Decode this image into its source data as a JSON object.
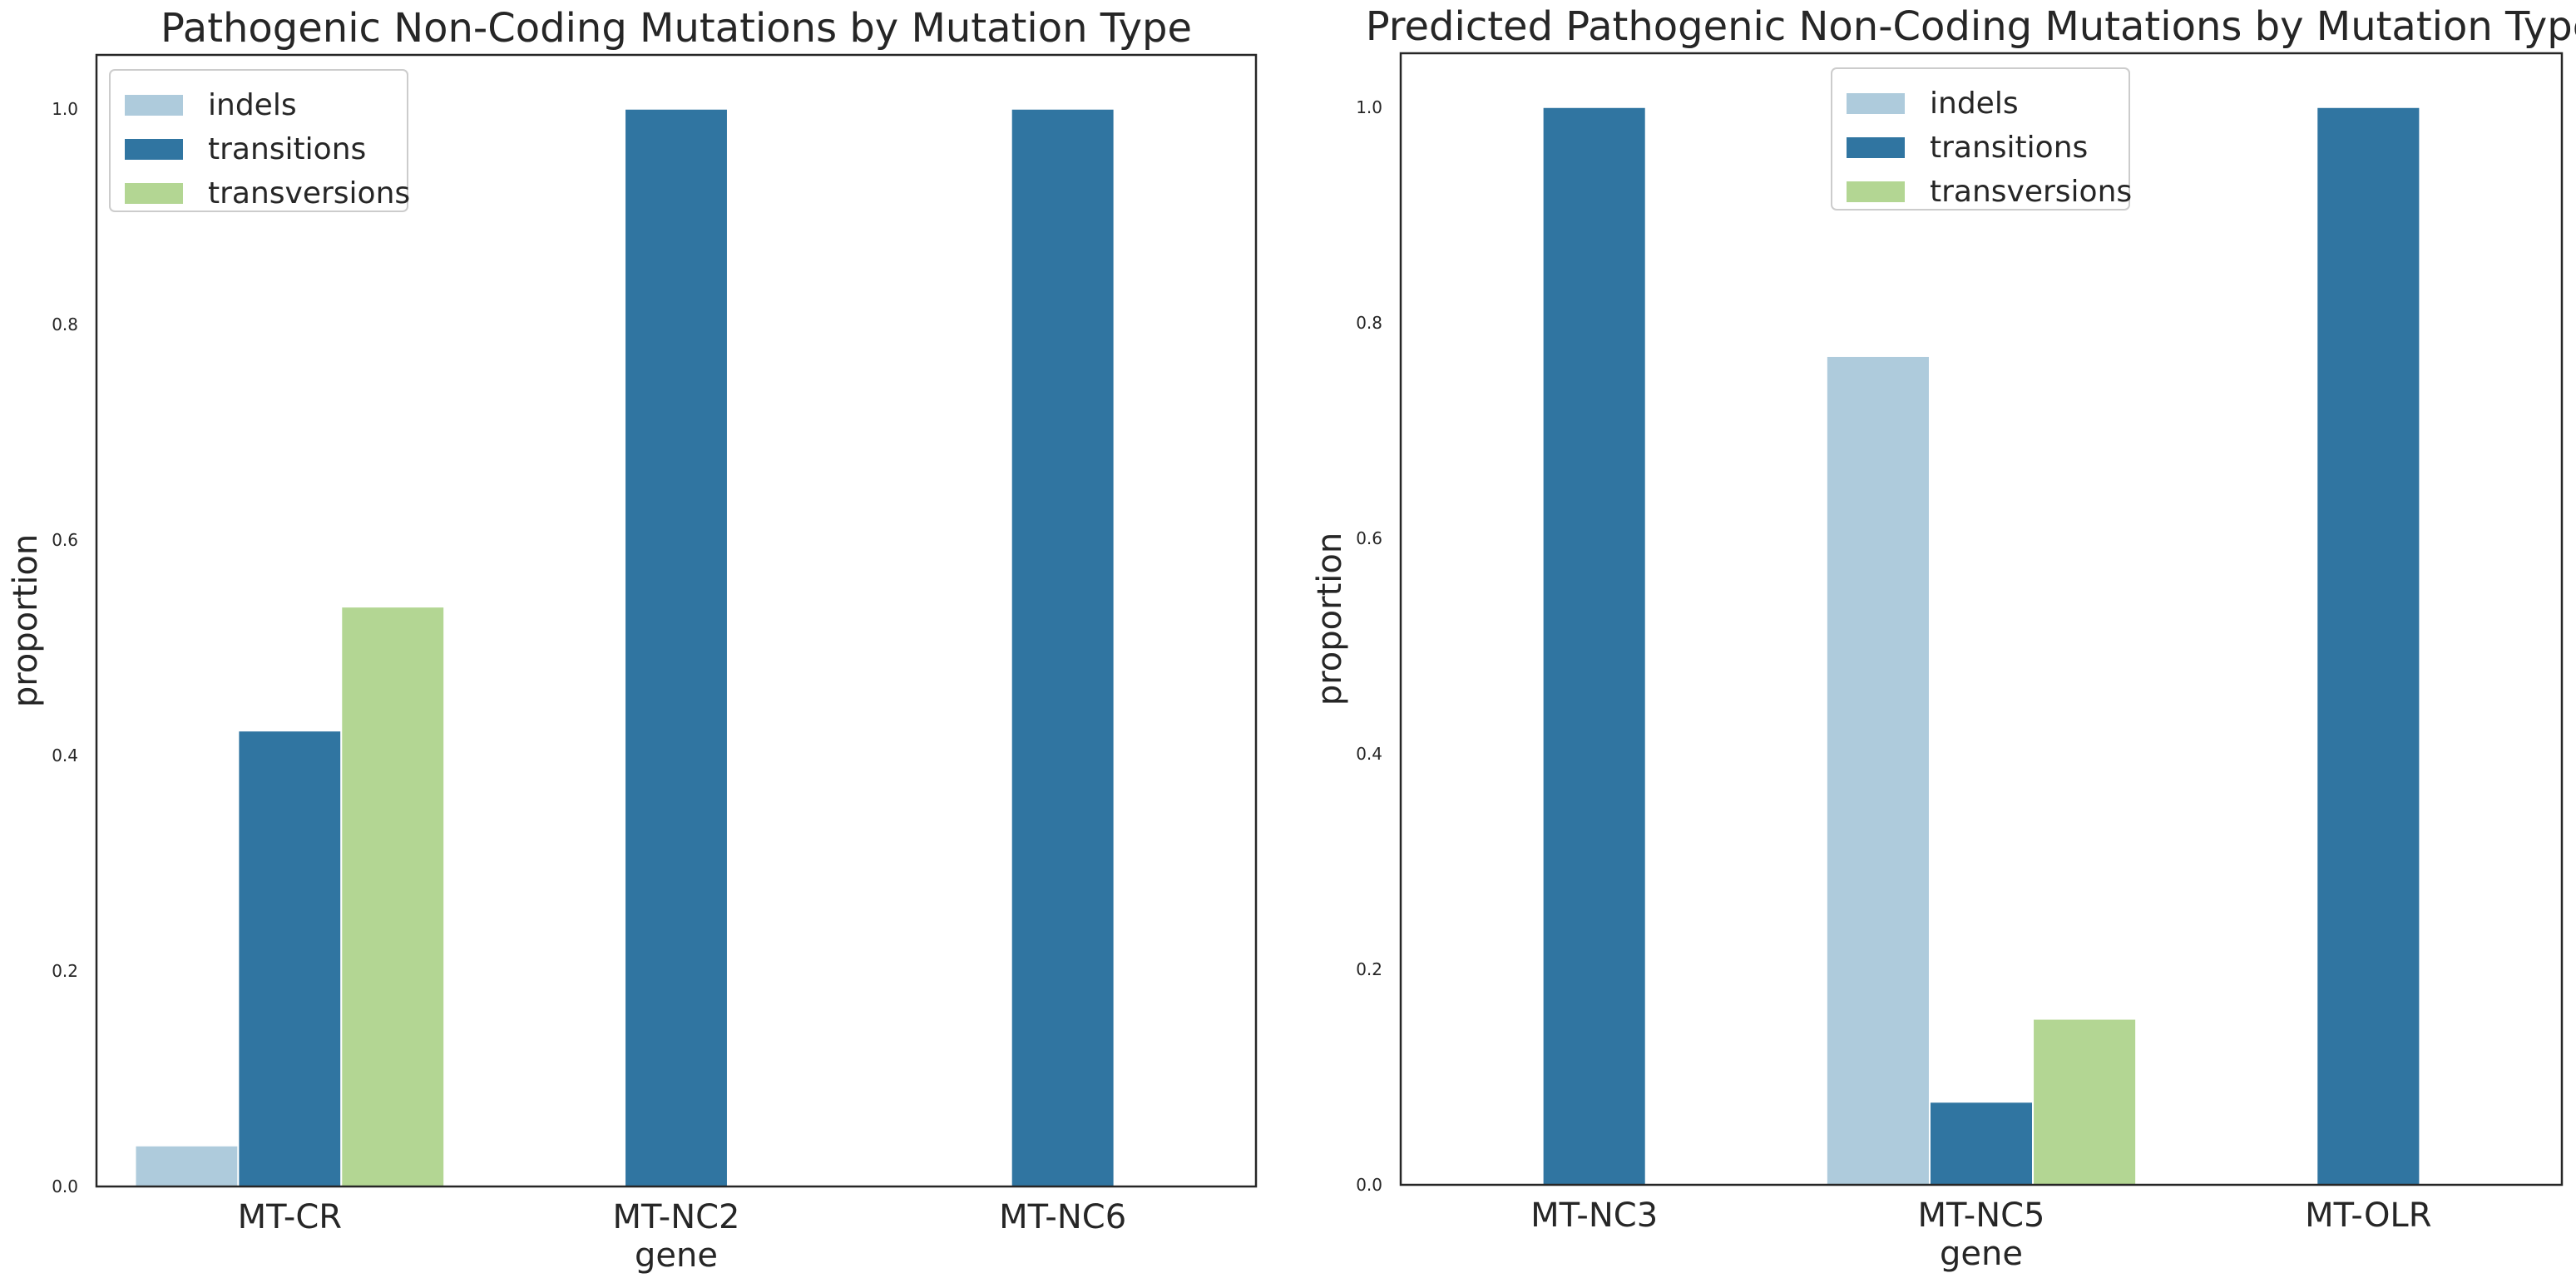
{
  "chart_data": [
    {
      "type": "bar",
      "title": "Pathogenic Non-Coding Mutations by Mutation Type",
      "xlabel": "gene",
      "ylabel": "proportion",
      "categories": [
        "MT-CR",
        "MT-NC2",
        "MT-NC6"
      ],
      "series": [
        {
          "name": "indels",
          "values": [
            0.038,
            0,
            0
          ]
        },
        {
          "name": "transitions",
          "values": [
            0.423,
            1.0,
            1.0
          ]
        },
        {
          "name": "transversions",
          "values": [
            0.538,
            0,
            0
          ]
        }
      ],
      "ylim": [
        0,
        1.05
      ],
      "yticks": [
        0.0,
        0.2,
        0.4,
        0.6,
        0.8,
        1.0
      ],
      "ytick_labels": [
        "0.0",
        "0.2",
        "0.4",
        "0.6",
        "0.8",
        "1.0"
      ],
      "legend": "top-left",
      "grid": false
    },
    {
      "type": "bar",
      "title": "Predicted Pathogenic Non-Coding Mutations by Mutation Type",
      "xlabel": "gene",
      "ylabel": "proportion",
      "categories": [
        "MT-NC3",
        "MT-NC5",
        "MT-OLR"
      ],
      "series": [
        {
          "name": "indels",
          "values": [
            0,
            0.769,
            0
          ]
        },
        {
          "name": "transitions",
          "values": [
            1.0,
            0.077,
            1.0
          ]
        },
        {
          "name": "transversions",
          "values": [
            0,
            0.154,
            0
          ]
        }
      ],
      "ylim": [
        0,
        1.05
      ],
      "yticks": [
        0.0,
        0.2,
        0.4,
        0.6,
        0.8,
        1.0
      ],
      "ytick_labels": [
        "0.0",
        "0.2",
        "0.4",
        "0.6",
        "0.8",
        "1.0"
      ],
      "legend": "top-center",
      "grid": false
    }
  ],
  "colors": {
    "indels": "#aecbdc",
    "transitions": "#3075a1",
    "transversions": "#b3d693",
    "axis": "#262626",
    "text": "#262626"
  }
}
